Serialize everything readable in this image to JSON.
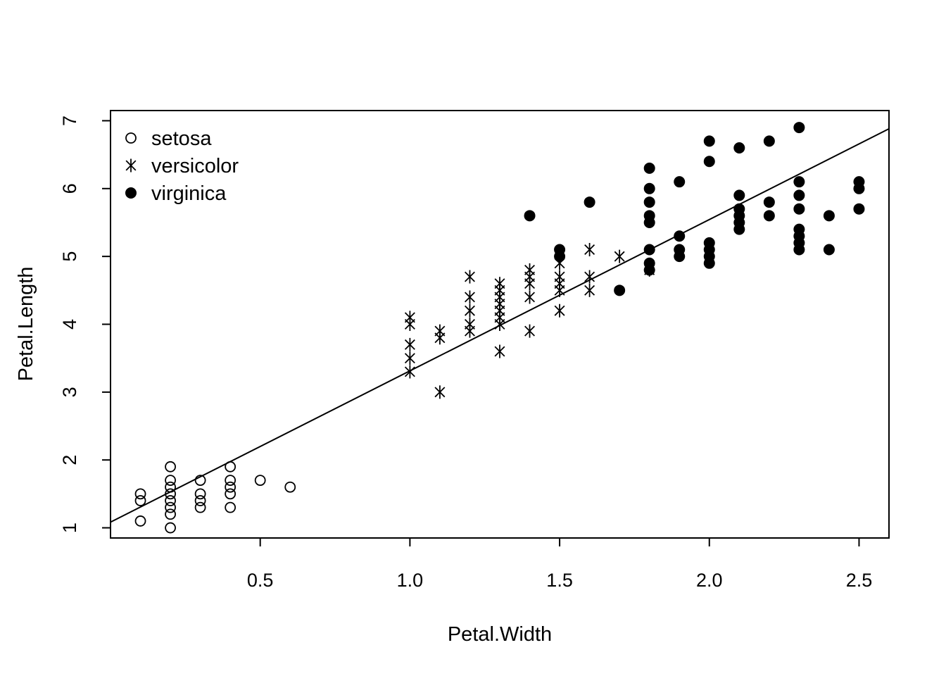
{
  "chart_data": {
    "type": "scatter",
    "title": "",
    "xlabel": "Petal.Width",
    "ylabel": "Petal.Length",
    "xlim": [
      0.0,
      2.6
    ],
    "ylim": [
      0.85,
      7.15
    ],
    "x_ticks": [
      0.5,
      1.0,
      1.5,
      2.0,
      2.5
    ],
    "x_tick_labels": [
      "0.5",
      "1.0",
      "1.5",
      "2.0",
      "2.5"
    ],
    "y_ticks": [
      1,
      2,
      3,
      4,
      5,
      6,
      7
    ],
    "y_tick_labels": [
      "1",
      "2",
      "3",
      "4",
      "5",
      "6",
      "7"
    ],
    "grid": false,
    "legend_position": "top-left",
    "regression_line": {
      "intercept": 1.0836,
      "slope": 2.2299
    },
    "series": [
      {
        "name": "setosa",
        "marker": "open-circle",
        "points": [
          [
            0.1,
            1.1
          ],
          [
            0.1,
            1.4
          ],
          [
            0.1,
            1.5
          ],
          [
            0.2,
            1.0
          ],
          [
            0.2,
            1.2
          ],
          [
            0.2,
            1.3
          ],
          [
            0.2,
            1.4
          ],
          [
            0.2,
            1.5
          ],
          [
            0.2,
            1.6
          ],
          [
            0.2,
            1.7
          ],
          [
            0.2,
            1.9
          ],
          [
            0.3,
            1.3
          ],
          [
            0.3,
            1.4
          ],
          [
            0.3,
            1.5
          ],
          [
            0.3,
            1.7
          ],
          [
            0.4,
            1.3
          ],
          [
            0.4,
            1.5
          ],
          [
            0.4,
            1.6
          ],
          [
            0.4,
            1.7
          ],
          [
            0.4,
            1.9
          ],
          [
            0.5,
            1.7
          ],
          [
            0.6,
            1.6
          ]
        ]
      },
      {
        "name": "versicolor",
        "marker": "asterisk",
        "points": [
          [
            1.0,
            3.3
          ],
          [
            1.0,
            3.5
          ],
          [
            1.0,
            3.7
          ],
          [
            1.0,
            4.0
          ],
          [
            1.0,
            4.1
          ],
          [
            1.1,
            3.0
          ],
          [
            1.1,
            3.8
          ],
          [
            1.1,
            3.9
          ],
          [
            1.2,
            3.9
          ],
          [
            1.2,
            4.0
          ],
          [
            1.2,
            4.2
          ],
          [
            1.2,
            4.4
          ],
          [
            1.2,
            4.7
          ],
          [
            1.3,
            3.6
          ],
          [
            1.3,
            4.0
          ],
          [
            1.3,
            4.1
          ],
          [
            1.3,
            4.2
          ],
          [
            1.3,
            4.3
          ],
          [
            1.3,
            4.4
          ],
          [
            1.3,
            4.5
          ],
          [
            1.3,
            4.6
          ],
          [
            1.4,
            3.9
          ],
          [
            1.4,
            4.4
          ],
          [
            1.4,
            4.6
          ],
          [
            1.4,
            4.7
          ],
          [
            1.4,
            4.8
          ],
          [
            1.5,
            4.2
          ],
          [
            1.5,
            4.5
          ],
          [
            1.5,
            4.6
          ],
          [
            1.5,
            4.7
          ],
          [
            1.5,
            4.9
          ],
          [
            1.6,
            4.5
          ],
          [
            1.6,
            4.7
          ],
          [
            1.6,
            5.1
          ],
          [
            1.7,
            5.0
          ],
          [
            1.8,
            4.8
          ]
        ]
      },
      {
        "name": "virginica",
        "marker": "filled-circle",
        "points": [
          [
            1.4,
            5.6
          ],
          [
            1.5,
            5.0
          ],
          [
            1.5,
            5.1
          ],
          [
            1.6,
            5.8
          ],
          [
            1.7,
            4.5
          ],
          [
            1.8,
            4.8
          ],
          [
            1.8,
            4.9
          ],
          [
            1.8,
            5.1
          ],
          [
            1.8,
            5.5
          ],
          [
            1.8,
            5.6
          ],
          [
            1.8,
            5.8
          ],
          [
            1.8,
            6.0
          ],
          [
            1.8,
            6.3
          ],
          [
            1.9,
            5.0
          ],
          [
            1.9,
            5.1
          ],
          [
            1.9,
            5.3
          ],
          [
            1.9,
            6.1
          ],
          [
            2.0,
            4.9
          ],
          [
            2.0,
            5.0
          ],
          [
            2.0,
            5.1
          ],
          [
            2.0,
            5.2
          ],
          [
            2.0,
            6.4
          ],
          [
            2.0,
            6.7
          ],
          [
            2.1,
            5.4
          ],
          [
            2.1,
            5.5
          ],
          [
            2.1,
            5.6
          ],
          [
            2.1,
            5.7
          ],
          [
            2.1,
            5.9
          ],
          [
            2.1,
            6.6
          ],
          [
            2.2,
            5.6
          ],
          [
            2.2,
            5.8
          ],
          [
            2.2,
            6.7
          ],
          [
            2.3,
            5.1
          ],
          [
            2.3,
            5.2
          ],
          [
            2.3,
            5.3
          ],
          [
            2.3,
            5.4
          ],
          [
            2.3,
            5.7
          ],
          [
            2.3,
            5.9
          ],
          [
            2.3,
            6.1
          ],
          [
            2.3,
            6.9
          ],
          [
            2.4,
            5.1
          ],
          [
            2.4,
            5.6
          ],
          [
            2.5,
            5.7
          ],
          [
            2.5,
            6.0
          ],
          [
            2.5,
            6.1
          ]
        ]
      }
    ]
  }
}
